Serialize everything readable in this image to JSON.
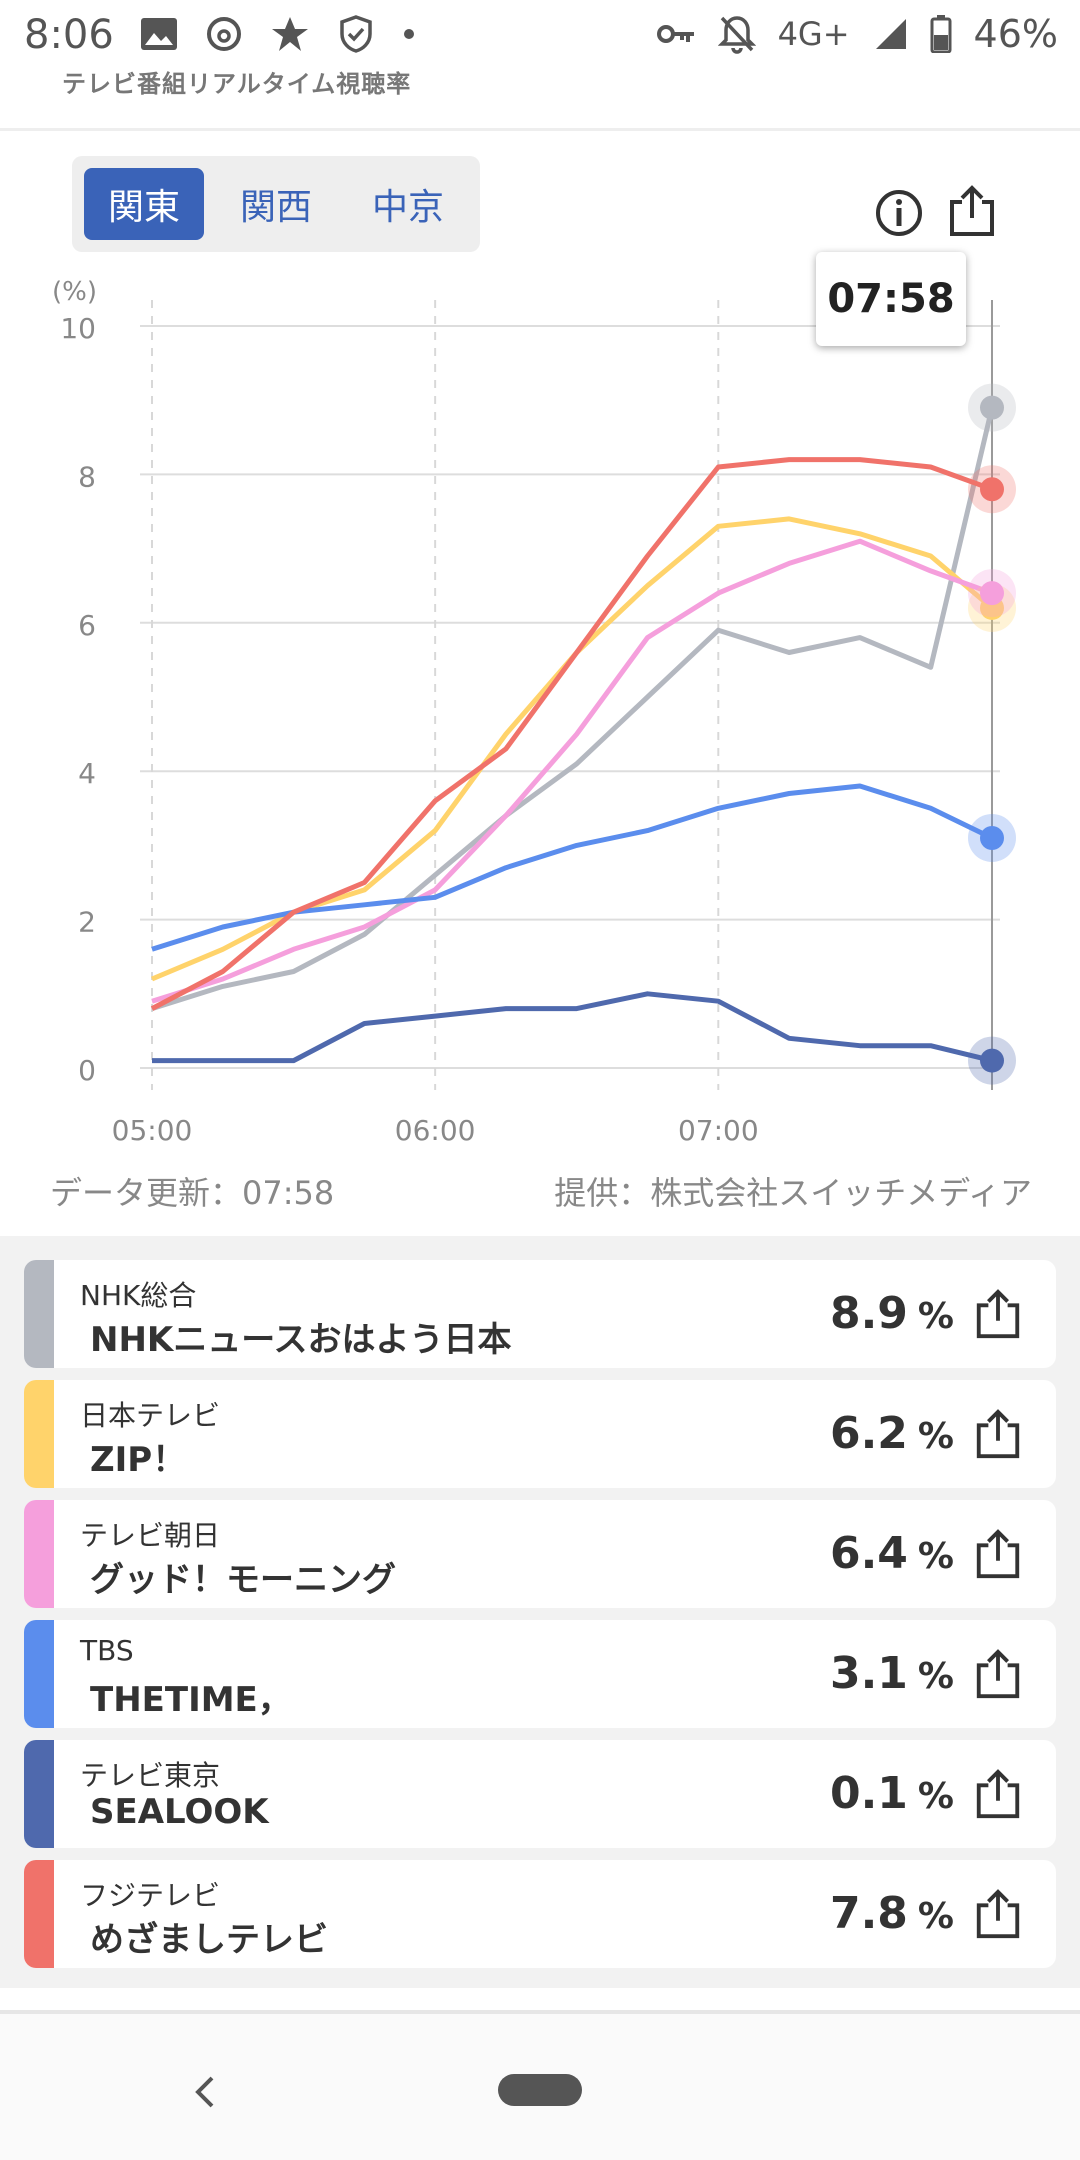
{
  "status_bar": {
    "time": "8:06",
    "left_icons": [
      "image-icon",
      "threads-icon",
      "star-icon",
      "shield-icon",
      "dot-icon"
    ],
    "network": "4G+",
    "battery": "46%"
  },
  "app": {
    "subtitle": "テレビ番組リアルタイム視聴率"
  },
  "region_tabs": [
    {
      "label": "関東",
      "active": true
    },
    {
      "label": "関西",
      "active": false
    },
    {
      "label": "中京",
      "active": false
    }
  ],
  "tooltip_time": "07:58",
  "chart_data": {
    "type": "line",
    "ylabel": "(%)",
    "ylim": [
      0,
      10
    ],
    "yticks": [
      "0",
      "2",
      "4",
      "6",
      "8",
      "10"
    ],
    "x_tick_labels": [
      "05:00",
      "06:00",
      "07:00"
    ],
    "xlim_minutes": [
      300,
      478
    ],
    "x": [
      300,
      315,
      330,
      345,
      360,
      375,
      390,
      405,
      420,
      435,
      450,
      465,
      478
    ],
    "series": [
      {
        "name": "NHK総合",
        "color": "#b4b8c0",
        "values": [
          0.8,
          1.1,
          1.3,
          1.8,
          2.6,
          3.4,
          4.1,
          5.0,
          5.9,
          5.6,
          5.8,
          5.4,
          8.9
        ]
      },
      {
        "name": "日本テレビ",
        "color": "#ffd36b",
        "values": [
          1.2,
          1.6,
          2.1,
          2.4,
          3.2,
          4.5,
          5.6,
          6.5,
          7.3,
          7.4,
          7.2,
          6.9,
          6.2
        ]
      },
      {
        "name": "テレビ朝日",
        "color": "#f59fdc",
        "values": [
          0.9,
          1.2,
          1.6,
          1.9,
          2.4,
          3.4,
          4.5,
          5.8,
          6.4,
          6.8,
          7.1,
          6.7,
          6.4
        ]
      },
      {
        "name": "TBS",
        "color": "#5b8ded",
        "values": [
          1.6,
          1.9,
          2.1,
          2.2,
          2.3,
          2.7,
          3.0,
          3.2,
          3.5,
          3.7,
          3.8,
          3.5,
          3.1
        ]
      },
      {
        "name": "テレビ東京",
        "color": "#4f69ad",
        "values": [
          0.1,
          0.1,
          0.1,
          0.6,
          0.7,
          0.8,
          0.8,
          1.0,
          0.9,
          0.4,
          0.3,
          0.3,
          0.1
        ]
      },
      {
        "name": "フジテレビ",
        "color": "#f0726a",
        "values": [
          0.8,
          1.3,
          2.1,
          2.5,
          3.6,
          4.3,
          5.6,
          6.9,
          8.1,
          8.2,
          8.2,
          8.1,
          7.8
        ]
      }
    ]
  },
  "footer": {
    "updated": "データ更新：07:58",
    "provider": "提供：株式会社スイッチメディア"
  },
  "channels": [
    {
      "channel": "NHK総合",
      "program": "NHKニュースおはよう日本",
      "value": "8.9",
      "unit": "%",
      "color": "#b4b8c0"
    },
    {
      "channel": "日本テレビ",
      "program": "ZIP！",
      "value": "6.2",
      "unit": "%",
      "color": "#ffd36b"
    },
    {
      "channel": "テレビ朝日",
      "program": "グッド！モーニング",
      "value": "6.4",
      "unit": "%",
      "color": "#f59fdc"
    },
    {
      "channel": "TBS",
      "program": "THETIME，",
      "value": "3.1",
      "unit": "%",
      "color": "#5b8ded"
    },
    {
      "channel": "テレビ東京",
      "program": "SEALOOK",
      "value": "0.1",
      "unit": "%",
      "color": "#4f69ad"
    },
    {
      "channel": "フジテレビ",
      "program": "めざましテレビ",
      "value": "7.8",
      "unit": "%",
      "color": "#f0726a"
    }
  ]
}
